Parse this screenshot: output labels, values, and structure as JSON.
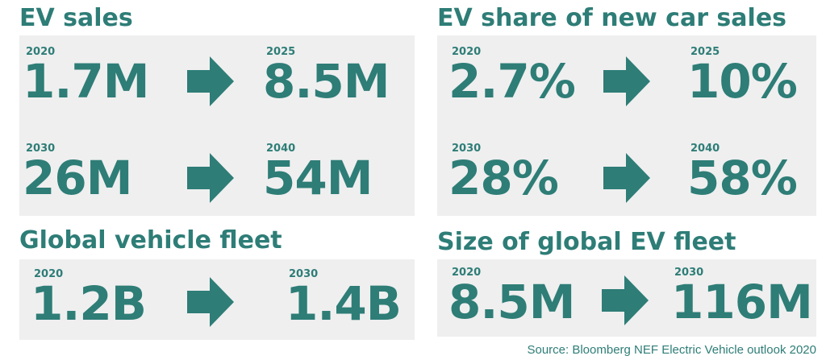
{
  "colors": {
    "accent": "#2e7d77",
    "panel_bg": "#efefef"
  },
  "panels": {
    "ev_sales": {
      "title": "EV sales",
      "rows": [
        {
          "from": {
            "year": "2020",
            "value": "1.7M"
          },
          "to": {
            "year": "2025",
            "value": "8.5M"
          }
        },
        {
          "from": {
            "year": "2030",
            "value": "26M"
          },
          "to": {
            "year": "2040",
            "value": "54M"
          }
        }
      ]
    },
    "ev_share": {
      "title": "EV share of new car sales",
      "rows": [
        {
          "from": {
            "year": "2020",
            "value": "2.7%"
          },
          "to": {
            "year": "2025",
            "value": "10%"
          }
        },
        {
          "from": {
            "year": "2030",
            "value": "28%"
          },
          "to": {
            "year": "2040",
            "value": "58%"
          }
        }
      ]
    },
    "global_fleet": {
      "title": "Global vehicle fleet",
      "rows": [
        {
          "from": {
            "year": "2020",
            "value": "1.2B"
          },
          "to": {
            "year": "2030",
            "value": "1.4B"
          }
        }
      ]
    },
    "ev_fleet": {
      "title": "Size of global EV fleet",
      "rows": [
        {
          "from": {
            "year": "2020",
            "value": "8.5M"
          },
          "to": {
            "year": "2030",
            "value": "116M"
          }
        }
      ]
    }
  },
  "source": "Source: Bloomberg NEF Electric Vehicle outlook 2020"
}
